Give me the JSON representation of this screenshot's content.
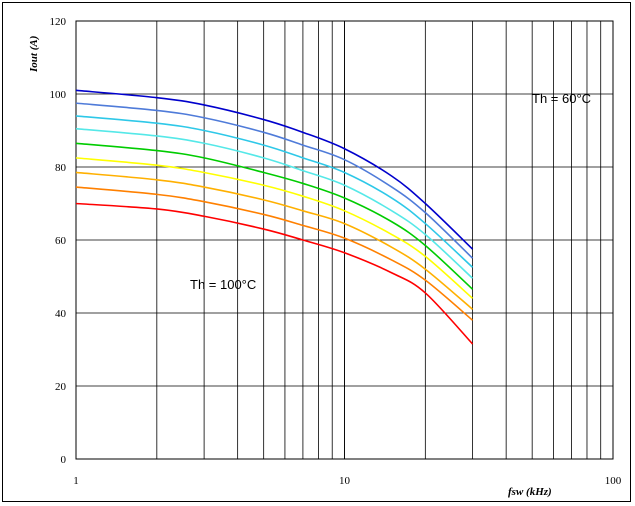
{
  "chart_data": {
    "type": "line",
    "xlabel": "fsw (kHz)",
    "ylabel": "Iout (A)",
    "xscale": "log",
    "xlim": [
      1,
      100
    ],
    "ylim": [
      0,
      120
    ],
    "grid": true,
    "x_ticks": [
      "1",
      "10",
      "100"
    ],
    "y_ticks": [
      "0",
      "20",
      "40",
      "60",
      "80",
      "100",
      "120"
    ],
    "x": [
      1,
      2,
      3,
      5,
      7,
      10,
      15,
      20,
      30
    ],
    "series": [
      {
        "color": "#0000cc",
        "values": [
          101,
          99,
          97,
          93,
          89.5,
          85,
          77.5,
          70,
          57.5
        ]
      },
      {
        "color": "#4f7bd9",
        "values": [
          97.5,
          95.5,
          93.5,
          89.5,
          86,
          82,
          74.5,
          67.5,
          55
        ]
      },
      {
        "color": "#2ec8e8",
        "values": [
          94,
          92,
          90,
          86,
          82.5,
          78.5,
          71.5,
          64.5,
          52.5
        ]
      },
      {
        "color": "#55e8e8",
        "values": [
          90.5,
          88.5,
          86.5,
          82.5,
          79,
          75,
          68,
          61.5,
          49.5
        ]
      },
      {
        "color": "#00cc00",
        "values": [
          86.5,
          84.5,
          82.5,
          78.5,
          75.5,
          71.5,
          65,
          58.5,
          46.5
        ]
      },
      {
        "color": "#ffff00",
        "values": [
          82.5,
          80.5,
          78.5,
          75,
          72,
          68,
          61.5,
          55.5,
          44
        ]
      },
      {
        "color": "#ffb000",
        "values": [
          78.5,
          76.5,
          74.5,
          71,
          68,
          64.5,
          58,
          52,
          41
        ]
      },
      {
        "color": "#ff8000",
        "values": [
          74.5,
          72.5,
          70.5,
          67,
          64,
          60.5,
          54.5,
          49,
          38
        ]
      },
      {
        "color": "#ff0000",
        "values": [
          70,
          68.5,
          66.5,
          63,
          60,
          56.5,
          51,
          45.5,
          31.5
        ]
      }
    ],
    "annotations": [
      {
        "text": "Th = 60°C"
      },
      {
        "text": "Th = 100°C"
      }
    ]
  }
}
